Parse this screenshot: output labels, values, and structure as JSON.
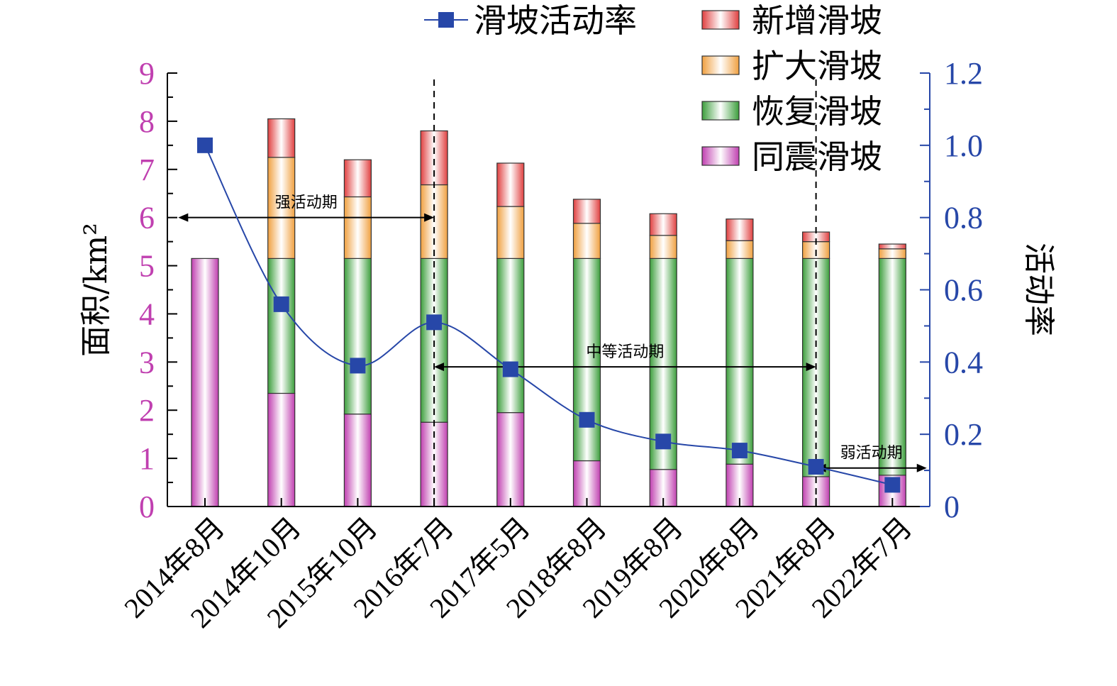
{
  "chart_data": {
    "type": "bar",
    "stacked": true,
    "categories": [
      "2014年8月",
      "2014年10月",
      "2015年10月",
      "2016年7月",
      "2017年5月",
      "2018年8月",
      "2019年8月",
      "2020年8月",
      "2021年8月",
      "2022年7月"
    ],
    "series": [
      {
        "name": "同震滑坡",
        "color": "#c040b0",
        "values": [
          5.15,
          2.35,
          1.92,
          1.75,
          1.95,
          0.95,
          0.77,
          0.88,
          0.62,
          0.65
        ]
      },
      {
        "name": "恢复滑坡",
        "color": "#3c9e3c",
        "values": [
          0,
          2.8,
          3.23,
          3.4,
          3.2,
          4.2,
          4.38,
          4.27,
          4.53,
          4.5
        ]
      },
      {
        "name": "扩大滑坡",
        "color": "#f0a040",
        "values": [
          0,
          2.1,
          1.28,
          1.53,
          1.08,
          0.73,
          0.48,
          0.37,
          0.35,
          0.2
        ]
      },
      {
        "name": "新增滑坡",
        "color": "#e04040",
        "values": [
          0,
          0.8,
          0.77,
          1.12,
          0.9,
          0.5,
          0.45,
          0.45,
          0.2,
          0.1
        ]
      }
    ],
    "line_series": {
      "name": "滑坡活动率",
      "color": "#2747a8",
      "values": [
        1.0,
        0.56,
        0.39,
        0.51,
        0.38,
        0.24,
        0.18,
        0.155,
        0.11,
        0.06
      ]
    },
    "ylabel": "面积/km²",
    "ylim": [
      0,
      9
    ],
    "y_ticks": [
      "0",
      "1",
      "2",
      "3",
      "4",
      "5",
      "6",
      "7",
      "8",
      "9"
    ],
    "y2label": "活动率",
    "y2lim": [
      0,
      1.2
    ],
    "y2_ticks": [
      "0",
      "0.2",
      "0.4",
      "0.6",
      "0.8",
      "1.0",
      "1.2"
    ],
    "left_axis_color": "#c040b0",
    "right_axis_color": "#2747a8",
    "legend_position": "top-right",
    "periods": [
      {
        "label": "强活动期",
        "from_x": -0.35,
        "to_x": 3,
        "y": 6
      },
      {
        "label": "中等活动期",
        "from_x": 3,
        "to_x": 8,
        "y": 2.9
      },
      {
        "label": "弱活动期",
        "from_x": 8,
        "to_x": 9.45,
        "y": 0.8
      }
    ],
    "dividers": [
      3,
      8
    ],
    "grid": false
  }
}
